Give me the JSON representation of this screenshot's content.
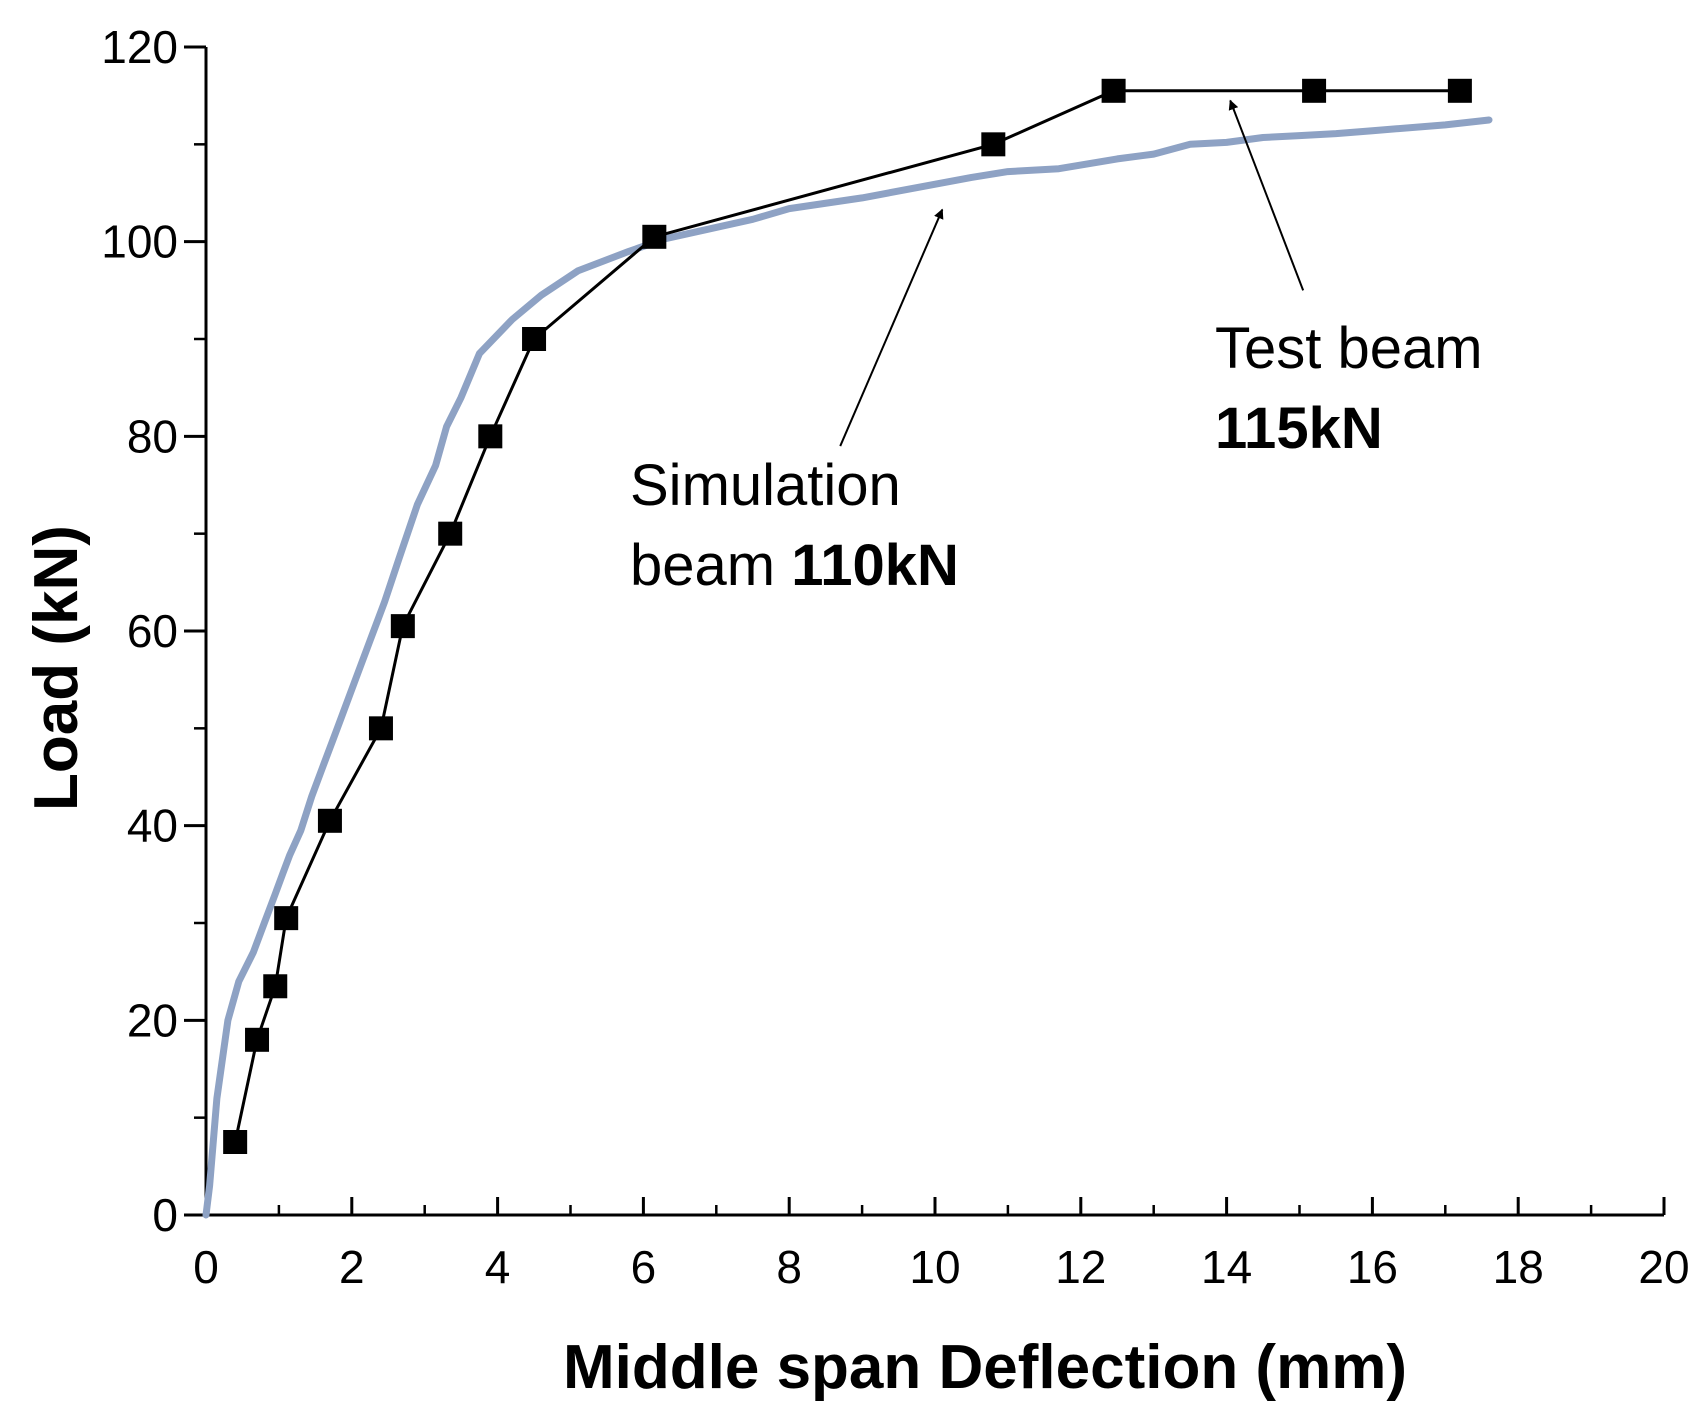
{
  "chart_data": {
    "type": "line",
    "xlabel": "Middle span Deflection (mm)",
    "ylabel": "Load (kN)",
    "xlim": [
      0,
      20
    ],
    "ylim": [
      0,
      120
    ],
    "x_major_ticks": [
      0,
      2,
      4,
      6,
      8,
      10,
      12,
      14,
      16,
      18,
      20
    ],
    "x_minor_ticks": [
      1,
      3,
      5,
      7,
      9,
      11,
      13,
      15,
      17,
      19
    ],
    "y_major_ticks": [
      0,
      20,
      40,
      60,
      80,
      100,
      120
    ],
    "y_minor_ticks": [
      10,
      30,
      50,
      70,
      90,
      110
    ],
    "x_tick_labels": [
      "0",
      "2",
      "4",
      "6",
      "8",
      "10",
      "12",
      "14",
      "16",
      "18",
      "20"
    ],
    "y_tick_labels": [
      "0",
      "20",
      "40",
      "60",
      "80",
      "100",
      "120"
    ],
    "series": [
      {
        "name": "Simulation beam",
        "style": "line",
        "color": "#8ea2c4",
        "x": [
          0,
          0.05,
          0.15,
          0.3,
          0.45,
          0.65,
          0.8,
          0.95,
          1.05,
          1.15,
          1.3,
          1.45,
          1.6,
          1.75,
          1.85,
          2.05,
          2.25,
          2.45,
          2.65,
          2.9,
          3.15,
          3.3,
          3.5,
          3.75,
          4.2,
          4.6,
          5.1,
          5.8,
          6.3,
          7.5,
          8.0,
          9.0,
          10.5,
          11.0,
          11.7,
          12.5,
          13.0,
          13.5,
          14.0,
          14.5,
          15.0,
          15.5,
          16.0,
          17.0,
          17.6
        ],
        "y": [
          0,
          3,
          12,
          20,
          24,
          27,
          30,
          33,
          35,
          37,
          39.5,
          43,
          46,
          49,
          51,
          55,
          59,
          63,
          67.5,
          73,
          77,
          81,
          84,
          88.5,
          92,
          94.5,
          97,
          99,
          100.3,
          102.3,
          103.4,
          104.5,
          106.6,
          107.2,
          107.5,
          108.5,
          109,
          110,
          110.2,
          110.7,
          110.9,
          111.1,
          111.4,
          112,
          112.5
        ]
      },
      {
        "name": "Test beam",
        "style": "line-with-square-markers",
        "color": "#000000",
        "x": [
          0.4,
          0.7,
          0.95,
          1.1,
          1.7,
          2.4,
          2.7,
          3.35,
          3.9,
          4.5,
          6.15,
          10.8,
          12.45,
          15.2,
          17.2
        ],
        "y": [
          7.5,
          18,
          23.5,
          30.5,
          40.5,
          50,
          60.5,
          70,
          80,
          90,
          100.5,
          110,
          115.5,
          115.5,
          115.5
        ]
      }
    ],
    "annotations": [
      {
        "lines": [
          {
            "normal": "Simulation",
            "bold": ""
          },
          {
            "normal": "beam ",
            "bold": "110kN"
          }
        ],
        "arrow_from": [
          8.7,
          79
        ],
        "arrow_to": [
          10.1,
          103.3
        ]
      },
      {
        "lines": [
          {
            "normal": "Test beam",
            "bold": ""
          },
          {
            "normal": "",
            "bold": "115kN"
          }
        ],
        "arrow_from": [
          15.05,
          95
        ],
        "arrow_to": [
          14.05,
          114.5
        ]
      }
    ]
  }
}
